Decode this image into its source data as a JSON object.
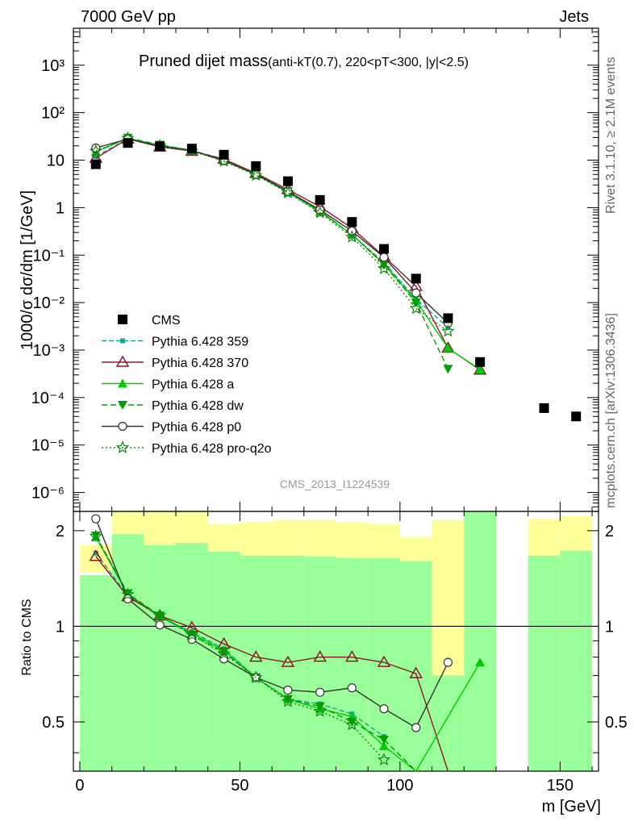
{
  "header": {
    "left": "7000 GeV pp",
    "right": "Jets"
  },
  "side_text": {
    "rivet": "Rivet 3.1.10, ≥ 2.1M events",
    "mcplots": "mcplots.cern.ch [arXiv:1306.3436]"
  },
  "chart_data": {
    "type": "line",
    "title": "Pruned dijet mass",
    "title_detail": "(anti-kT(0.7), 220<pT<300, |y|<2.5)",
    "watermark": "CMS_2013_I1224539",
    "xlabel": "m [GeV]",
    "ylabel_main": "1000/σ dσ/dm [1/GeV]",
    "ylabel_ratio": "Ratio to CMS",
    "xlim": [
      -2,
      162
    ],
    "ylim_main": [
      4e-07,
      6000
    ],
    "ylim_ratio": [
      0.35,
      2.3
    ],
    "y_scale_main": "log",
    "x_ticks": [
      0,
      50,
      100,
      150
    ],
    "ratio_ticks": [
      0.5,
      1,
      2
    ],
    "main_tick_labels": [
      "10⁻⁶",
      "10⁻⁵",
      "10⁻⁴",
      "10⁻³",
      "10⁻²",
      "10⁻¹",
      "1",
      "10",
      "10²",
      "10³"
    ],
    "legend": {
      "position": "middle-left"
    },
    "cms": {
      "name": "CMS",
      "x": [
        5,
        15,
        25,
        35,
        45,
        55,
        65,
        75,
        85,
        95,
        105,
        115,
        125,
        145,
        155
      ],
      "y": [
        8.2,
        23,
        19.5,
        17.5,
        13,
        7.5,
        3.6,
        1.45,
        0.5,
        0.135,
        0.032,
        0.0047,
        0.00056,
        6e-05,
        4e-05
      ]
    },
    "bands": {
      "edges": [
        0,
        10,
        20,
        30,
        40,
        50,
        60,
        70,
        80,
        90,
        100,
        110,
        120,
        130,
        140,
        150,
        160
      ],
      "yellow_lo": [
        1.48,
        0.2,
        0.2,
        0.2,
        0.45,
        0.4,
        0.2,
        0.2,
        0.2,
        0.2,
        0.2,
        0.2,
        0.2,
        null,
        0.2,
        0.2
      ],
      "yellow_hi": [
        1.8,
        3,
        3,
        3,
        2.1,
        2.13,
        2.16,
        2.16,
        2.13,
        2.1,
        1.91,
        2.16,
        3,
        null,
        2.18,
        2.22
      ],
      "green_lo": [
        0.2,
        0.2,
        0.2,
        0.2,
        0.2,
        0.2,
        0.2,
        0.2,
        0.2,
        0.2,
        0.2,
        0.2,
        0.2,
        null,
        0.2,
        0.2
      ],
      "green_hi": [
        1.45,
        1.95,
        1.8,
        1.83,
        1.72,
        1.67,
        1.67,
        1.66,
        1.64,
        1.64,
        1.6,
        0.7,
        3,
        null,
        1.67,
        1.73
      ]
    },
    "series": [
      {
        "name": "Pythia 6.428 359",
        "color": "#1aa58a",
        "dash": "6,3",
        "marker": "square-small",
        "x": [
          5,
          15,
          25,
          35,
          45,
          55,
          65,
          75,
          85,
          95,
          105,
          115
        ],
        "main": [
          12,
          28,
          20.5,
          16,
          10.5,
          5.2,
          2.2,
          0.85,
          0.27,
          0.07,
          0.012,
          0.003
        ],
        "ratio": [
          1.7,
          1.25,
          1.07,
          0.96,
          0.85,
          0.69,
          0.59,
          0.57,
          0.53,
          0.45,
          null,
          null
        ]
      },
      {
        "name": "Pythia 6.428 370",
        "color": "#8b1a2a",
        "dash": "",
        "marker": "triangle-open",
        "x": [
          5,
          15,
          25,
          35,
          45,
          55,
          65,
          75,
          85,
          95,
          105,
          115,
          125
        ],
        "main": [
          11,
          28,
          19,
          15.5,
          10.5,
          5.3,
          2.4,
          1.05,
          0.37,
          0.094,
          0.022,
          0.0011,
          0.00038
        ],
        "ratio": [
          1.66,
          1.24,
          1.08,
          0.99,
          0.88,
          0.8,
          0.77,
          0.8,
          0.8,
          0.77,
          0.71,
          0.32,
          null
        ]
      },
      {
        "name": "Pythia 6.428 a",
        "color": "#00cc00",
        "dash": "",
        "marker": "triangle-filled",
        "x": [
          5,
          15,
          25,
          35,
          45,
          55,
          65,
          75,
          85,
          95,
          105,
          115,
          125
        ],
        "main": [
          15,
          29,
          20.5,
          16,
          9.8,
          5,
          2.1,
          0.82,
          0.27,
          0.065,
          0.011,
          0.0011,
          0.00039
        ],
        "ratio": [
          1.91,
          1.26,
          1.08,
          0.95,
          0.84,
          0.69,
          0.59,
          0.55,
          0.52,
          0.42,
          0.25,
          null,
          0.77
        ]
      },
      {
        "name": "Pythia 6.428 dw",
        "color": "#00a000",
        "dash": "7,4",
        "marker": "triangle-down",
        "x": [
          5,
          15,
          25,
          35,
          45,
          55,
          65,
          75,
          85,
          95,
          105,
          115
        ],
        "main": [
          15,
          29.5,
          21,
          16,
          9.8,
          5.1,
          2.2,
          0.84,
          0.27,
          0.063,
          0.01,
          0.0004
        ],
        "ratio": [
          1.93,
          1.27,
          1.08,
          0.94,
          0.83,
          0.69,
          0.59,
          0.56,
          0.5,
          0.44,
          0.28,
          null
        ]
      },
      {
        "name": "Pythia 6.428 p0",
        "color": "#333333",
        "dash": "",
        "marker": "circle-open",
        "x": [
          5,
          15,
          25,
          35,
          45,
          55,
          65,
          75,
          85,
          95,
          105,
          115
        ],
        "main": [
          18,
          28,
          20,
          16,
          9.8,
          5,
          2.2,
          0.9,
          0.32,
          0.09,
          0.016,
          0.0037
        ],
        "ratio": [
          2.18,
          1.22,
          1.01,
          0.91,
          0.79,
          0.69,
          0.63,
          0.62,
          0.64,
          0.55,
          0.48,
          0.77
        ]
      },
      {
        "name": "Pythia 6.428 pro-q2o",
        "color": "#118811",
        "dash": "2,3",
        "marker": "star-open",
        "x": [
          5,
          15,
          25,
          35,
          45,
          55,
          65,
          75,
          85,
          95,
          105,
          115
        ],
        "main": [
          15.5,
          29,
          20,
          15.5,
          9.5,
          4.8,
          2.05,
          0.78,
          0.24,
          0.052,
          0.0075,
          0.0025
        ],
        "ratio": [
          1.92,
          1.26,
          1.08,
          0.94,
          0.82,
          0.69,
          0.58,
          0.54,
          0.49,
          0.38,
          null,
          null
        ]
      }
    ]
  }
}
